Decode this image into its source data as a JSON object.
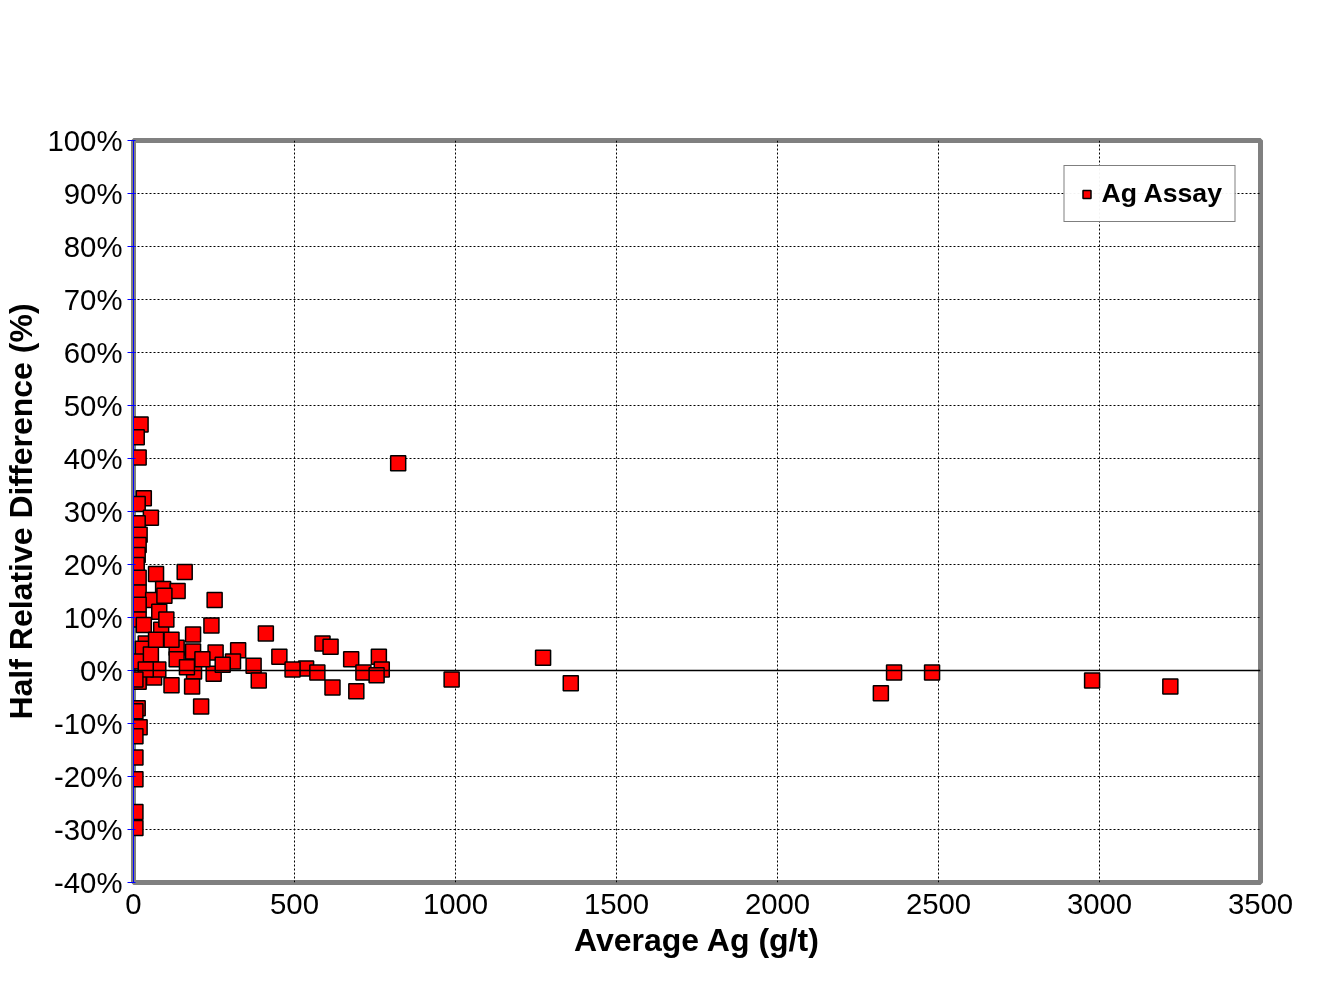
{
  "chart_data": {
    "type": "scatter",
    "xlabel": "Average Ag (g/t)",
    "ylabel": "Half Relative Difference (%)",
    "xlim": [
      0,
      3500
    ],
    "xticks": [
      0,
      500,
      1000,
      1500,
      2000,
      2500,
      3000,
      3500
    ],
    "ylim": [
      -40,
      100
    ],
    "yticks": [
      {
        "value": -40,
        "label": "-40%"
      },
      {
        "value": -30,
        "label": "-30%"
      },
      {
        "value": -20,
        "label": "-20%"
      },
      {
        "value": -10,
        "label": "-10%"
      },
      {
        "value": 0,
        "label": "0%"
      },
      {
        "value": 10,
        "label": "10%"
      },
      {
        "value": 20,
        "label": "20%"
      },
      {
        "value": 30,
        "label": "30%"
      },
      {
        "value": 40,
        "label": "40%"
      },
      {
        "value": 50,
        "label": "50%"
      },
      {
        "value": 60,
        "label": "60%"
      },
      {
        "value": 70,
        "label": "70%"
      },
      {
        "value": 80,
        "label": "80%"
      },
      {
        "value": 90,
        "label": "90%"
      },
      {
        "value": 100,
        "label": "100%"
      }
    ],
    "grid": true,
    "legend": "top right",
    "marker": "square",
    "series": [
      {
        "name": "Ag Assay",
        "color": "#ff0000",
        "x": [
          22,
          10,
          16,
          822,
          32,
          13,
          54,
          13,
          19,
          16,
          13,
          10,
          159,
          70,
          16,
          92,
          137,
          16,
          61,
          252,
          96,
          16,
          80,
          16,
          32,
          242,
          185,
          411,
          38,
          587,
          612,
          29,
          134,
          185,
          325,
          255,
          453,
          762,
          1272,
          676,
          22,
          134,
          309,
          373,
          536,
          494,
          571,
          714,
          771,
          755,
          188,
          249,
          389,
          988,
          2362,
          2480,
          2977,
          3220,
          1358,
          2321,
          618,
          692,
          182,
          118,
          64,
          16,
          210,
          13,
          6,
          19,
          6,
          6,
          6,
          6,
          6,
          86,
          118,
          54,
          77,
          166,
          38,
          214,
          277,
          6,
          102,
          70
        ],
        "values": [
          46.4,
          44,
          40.2,
          39.1,
          32.5,
          31.4,
          28.8,
          27.8,
          25.6,
          23.7,
          21.8,
          19.9,
          18.6,
          18.2,
          17.5,
          15.4,
          15,
          14.7,
          13.3,
          13.3,
          14.1,
          12.4,
          11.1,
          9.6,
          8.6,
          8.5,
          6.8,
          7,
          5.1,
          5.1,
          4.5,
          4.1,
          4.3,
          3.6,
          3.8,
          3.4,
          2.6,
          2.6,
          2.4,
          2.1,
          1.7,
          2.1,
          1.7,
          0.9,
          0.4,
          0.2,
          -0.4,
          -0.4,
          0.2,
          -0.9,
          -0.2,
          -0.6,
          -1.9,
          -1.7,
          -0.4,
          -0.4,
          -1.9,
          -3,
          -2.4,
          -4.3,
          -3.2,
          -3.9,
          -3,
          -2.8,
          -1.3,
          -2.1,
          -6.8,
          -7.1,
          -7.7,
          -10.7,
          -12.4,
          -16.4,
          -20.5,
          -26.7,
          -29.7,
          7.7,
          5.8,
          3,
          0.2,
          0.6,
          0.2,
          2.1,
          1.1,
          -1.7,
          9.6,
          5.8
        ]
      }
    ]
  }
}
